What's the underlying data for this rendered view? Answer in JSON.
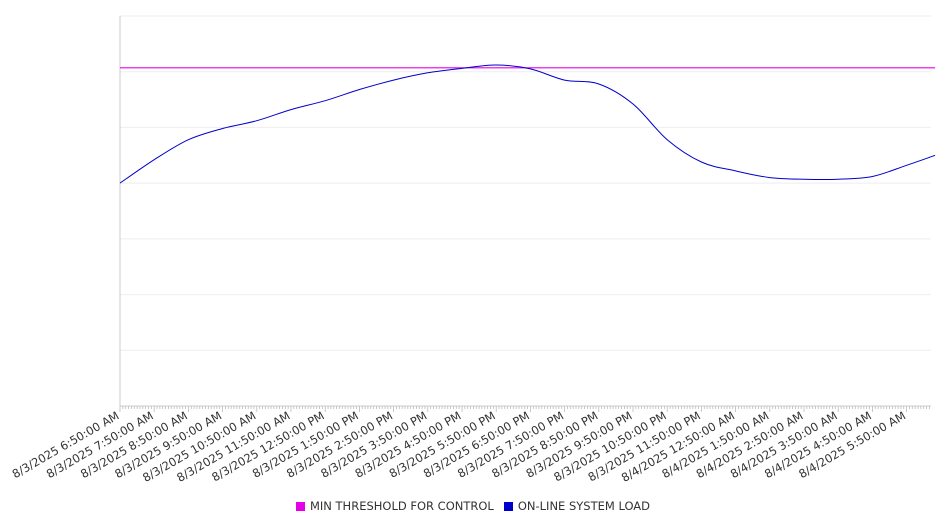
{
  "chart_data": {
    "type": "line",
    "title": "",
    "xlabel": "",
    "ylabel": "",
    "grid": true,
    "legend_position": "bottom",
    "ylim": [
      0,
      7
    ],
    "x_tick_labels": [
      "8/3/2025 6:50:00 AM",
      "8/3/2025 7:50:00 AM",
      "8/3/2025 8:50:00 AM",
      "8/3/2025 9:50:00 AM",
      "8/3/2025 10:50:00 AM",
      "8/3/2025 11:50:00 AM",
      "8/3/2025 12:50:00 PM",
      "8/3/2025 1:50:00 PM",
      "8/3/2025 2:50:00 PM",
      "8/3/2025 3:50:00 PM",
      "8/3/2025 4:50:00 PM",
      "8/3/2025 5:50:00 PM",
      "8/3/2025 6:50:00 PM",
      "8/3/2025 7:50:00 PM",
      "8/3/2025 8:50:00 PM",
      "8/3/2025 9:50:00 PM",
      "8/3/2025 10:50:00 PM",
      "8/3/2025 11:50:00 PM",
      "8/4/2025 12:50:00 AM",
      "8/4/2025 1:50:00 AM",
      "8/4/2025 2:50:00 AM",
      "8/4/2025 3:50:00 AM",
      "8/4/2025 4:50:00 AM",
      "8/4/2025 5:50:00 AM"
    ],
    "series": [
      {
        "name": "MIN THRESHOLD FOR CONTROL",
        "color": "#e600e6",
        "x": [
          "8/3/2025 6:50:00 AM",
          "8/4/2025 6:40:00 AM"
        ],
        "values": [
          6.07,
          6.07
        ]
      },
      {
        "name": "ON-LINE SYSTEM LOAD",
        "color": "#0000cc",
        "x": [
          "8/3/2025 6:50:00 AM",
          "8/3/2025 7:50:00 AM",
          "8/3/2025 8:50:00 AM",
          "8/3/2025 9:50:00 AM",
          "8/3/2025 10:50:00 AM",
          "8/3/2025 11:50:00 AM",
          "8/3/2025 12:50:00 PM",
          "8/3/2025 1:50:00 PM",
          "8/3/2025 2:50:00 PM",
          "8/3/2025 3:50:00 PM",
          "8/3/2025 4:50:00 PM",
          "8/3/2025 5:50:00 PM",
          "8/3/2025 6:50:00 PM",
          "8/3/2025 7:50:00 PM",
          "8/3/2025 8:50:00 PM",
          "8/3/2025 9:50:00 PM",
          "8/3/2025 10:50:00 PM",
          "8/3/2025 11:50:00 PM",
          "8/4/2025 12:50:00 AM",
          "8/4/2025 1:50:00 AM",
          "8/4/2025 2:50:00 AM",
          "8/4/2025 3:50:00 AM",
          "8/4/2025 4:50:00 AM",
          "8/4/2025 5:50:00 AM",
          "8/4/2025 6:40:00 AM"
        ],
        "values": [
          4.0,
          4.42,
          4.78,
          4.98,
          5.12,
          5.32,
          5.48,
          5.68,
          5.85,
          5.98,
          6.06,
          6.12,
          6.05,
          5.85,
          5.78,
          5.42,
          4.78,
          4.38,
          4.22,
          4.1,
          4.07,
          4.07,
          4.12,
          4.32,
          4.5
        ]
      }
    ]
  }
}
